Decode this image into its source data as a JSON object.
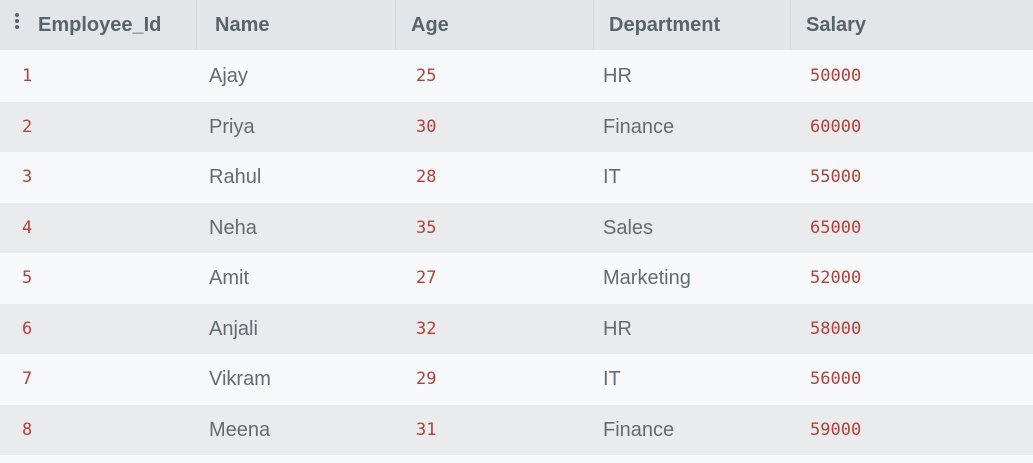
{
  "table": {
    "columns": [
      "Employee_Id",
      "Name",
      "Age",
      "Department",
      "Salary"
    ],
    "rows": [
      {
        "employee_id": "1",
        "name": "Ajay",
        "age": "25",
        "department": "HR",
        "salary": "50000"
      },
      {
        "employee_id": "2",
        "name": "Priya",
        "age": "30",
        "department": "Finance",
        "salary": "60000"
      },
      {
        "employee_id": "3",
        "name": "Rahul",
        "age": "28",
        "department": "IT",
        "salary": "55000"
      },
      {
        "employee_id": "4",
        "name": "Neha",
        "age": "35",
        "department": "Sales",
        "salary": "65000"
      },
      {
        "employee_id": "5",
        "name": "Amit",
        "age": "27",
        "department": "Marketing",
        "salary": "52000"
      },
      {
        "employee_id": "6",
        "name": "Anjali",
        "age": "32",
        "department": "HR",
        "salary": "58000"
      },
      {
        "employee_id": "7",
        "name": "Vikram",
        "age": "29",
        "department": "IT",
        "salary": "56000"
      },
      {
        "employee_id": "8",
        "name": "Meena",
        "age": "31",
        "department": "Finance",
        "salary": "59000"
      }
    ]
  },
  "icons": {
    "column_menu": "vertical-dots-icon"
  },
  "colors": {
    "header_background": "#e3e6e9",
    "header_text": "#5a6369",
    "row_light": "#f8f9fa",
    "row_dark": "#e9ebed",
    "numeric_text": "#b5403a",
    "text": "#636c72"
  }
}
